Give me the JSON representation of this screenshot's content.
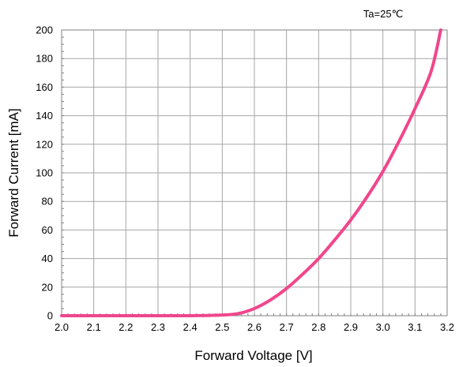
{
  "chart_data": {
    "type": "line",
    "title": "",
    "annotation": "Ta=25℃",
    "xlabel": "Forward Voltage [V]",
    "ylabel": "Forward Current [mA]",
    "xlim": [
      2.0,
      3.2
    ],
    "ylim": [
      0,
      200
    ],
    "xticks": [
      "2.0",
      "2.1",
      "2.2",
      "2.3",
      "2.4",
      "2.5",
      "2.6",
      "2.7",
      "2.8",
      "2.9",
      "3.0",
      "3.1",
      "3.2"
    ],
    "yticks": [
      "0",
      "20",
      "40",
      "60",
      "80",
      "100",
      "120",
      "140",
      "160",
      "180",
      "200"
    ],
    "grid": true,
    "line_color": "#f0468c",
    "series": [
      {
        "x": [
          2.0,
          2.1,
          2.2,
          2.3,
          2.4,
          2.5,
          2.55,
          2.6,
          2.65,
          2.7,
          2.75,
          2.8,
          2.85,
          2.9,
          2.95,
          3.0,
          3.05,
          3.1,
          3.15,
          3.18
        ],
        "y": [
          0,
          0,
          0,
          0,
          0,
          0.5,
          1.5,
          5,
          11,
          19,
          29,
          40,
          53,
          67,
          83,
          101,
          122,
          145,
          171,
          200
        ]
      }
    ]
  }
}
